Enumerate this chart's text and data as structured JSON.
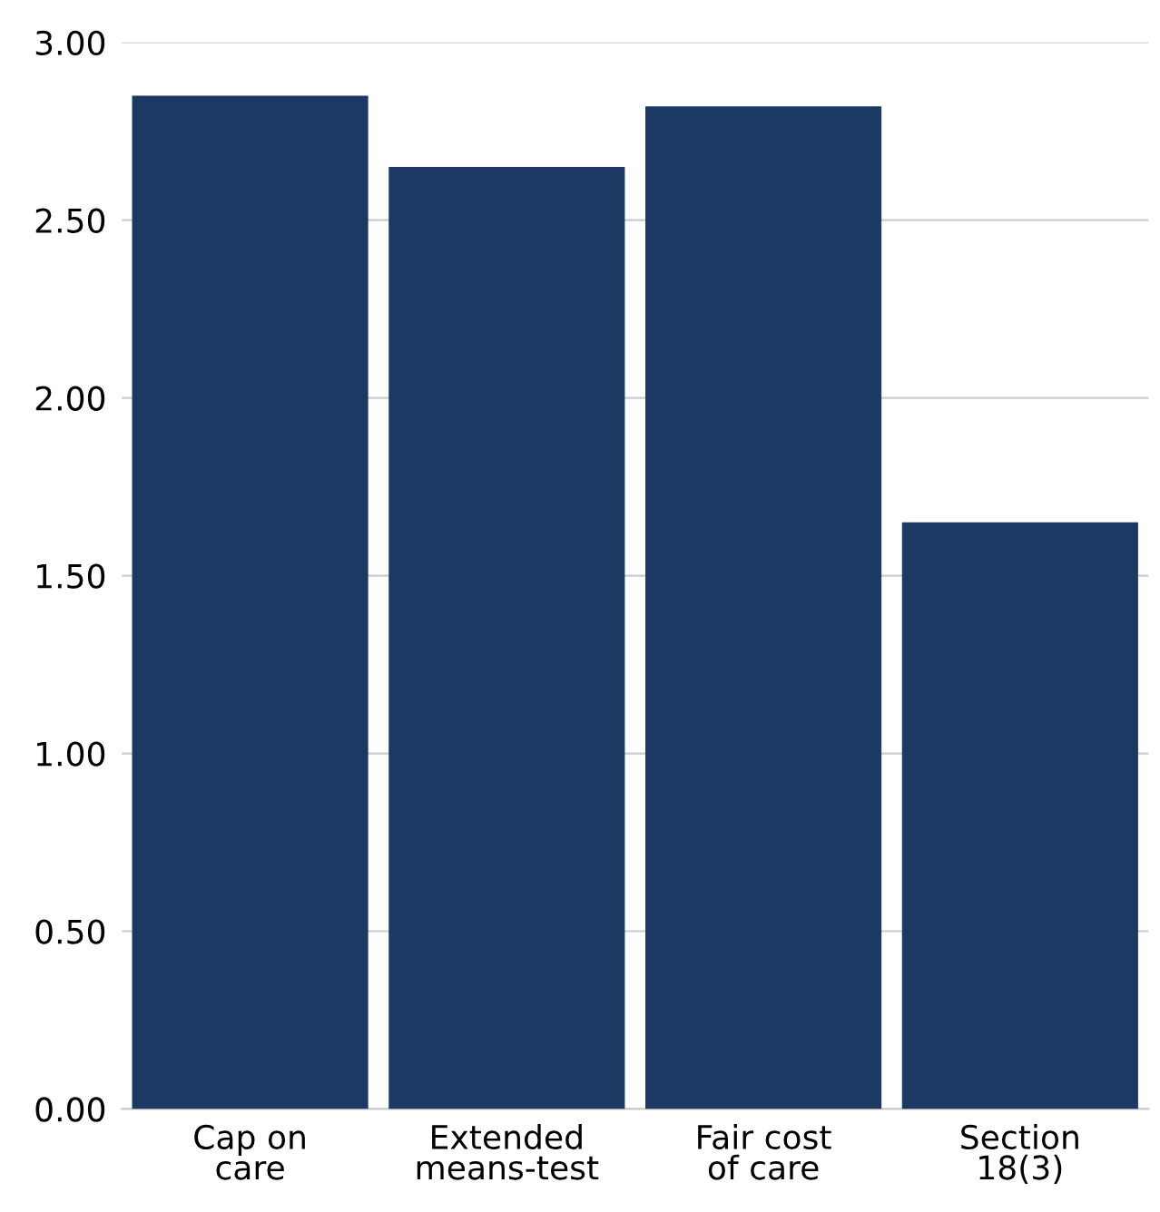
{
  "chart_data": {
    "type": "bar",
    "categories": [
      "Cap on care",
      "Extended means-test",
      "Fair cost of care",
      "Section 18(3)"
    ],
    "values": [
      2.85,
      2.65,
      2.82,
      1.65
    ],
    "color": "#1c3964",
    "ylim": [
      0,
      3
    ],
    "yticks": [
      {
        "value": 0,
        "label": "0.00"
      },
      {
        "value": 0.5,
        "label": "0.50"
      },
      {
        "value": 1,
        "label": "1.00"
      },
      {
        "value": 1.5,
        "label": "1.50"
      },
      {
        "value": 2,
        "label": "2.00"
      },
      {
        "value": 2.5,
        "label": "2.50"
      },
      {
        "value": 3,
        "label": "3.00"
      }
    ],
    "grid": "y"
  }
}
